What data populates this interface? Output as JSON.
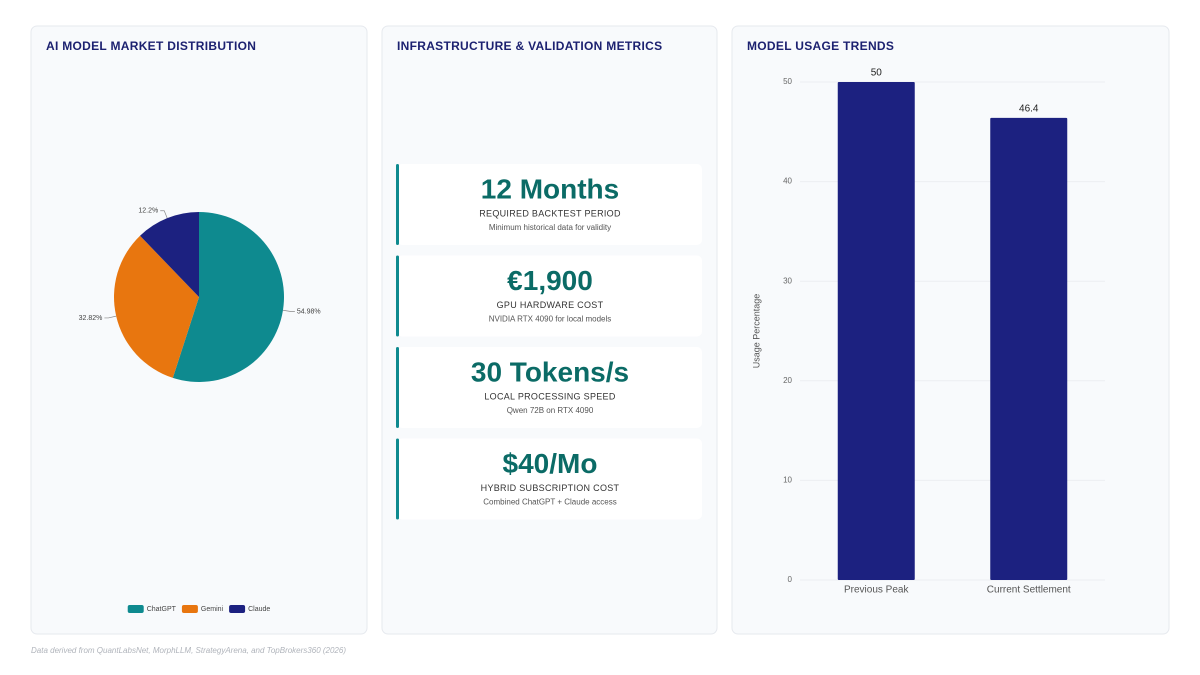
{
  "chart_data": [
    {
      "type": "pie",
      "title": "AI MODEL MARKET DISTRIBUTION",
      "categories": [
        "ChatGPT",
        "Gemini",
        "Claude"
      ],
      "values": [
        54.98,
        32.82,
        12.2
      ],
      "value_labels": [
        "54.98%",
        "32.82%",
        "12.2%"
      ],
      "colors": [
        "#0e8a8f",
        "#e8760f",
        "#1c2180"
      ]
    },
    {
      "type": "bar",
      "title": "MODEL USAGE TRENDS",
      "categories": [
        "Previous Peak",
        "Current Settlement"
      ],
      "values": [
        50,
        46.4
      ],
      "color": "#1c2180",
      "y_label": "Usage Percentage",
      "ylim": [
        0,
        50
      ],
      "yticks": [
        0,
        10,
        20,
        30,
        40,
        50
      ],
      "grid": true
    }
  ],
  "metrics": {
    "title": "INFRASTRUCTURE & VALIDATION METRICS",
    "cards": [
      {
        "value": "12 Months",
        "label": "REQUIRED BACKTEST PERIOD",
        "note": "Minimum historical data for validity"
      },
      {
        "value": "€1,900",
        "label": "GPU HARDWARE COST",
        "note": "NVIDIA RTX 4090 for local models"
      },
      {
        "value": "30 Tokens/s",
        "label": "LOCAL PROCESSING SPEED",
        "note": "Qwen 72B on RTX 4090"
      },
      {
        "value": "$40/Mo",
        "label": "HYBRID SUBSCRIPTION COST",
        "note": "Combined ChatGPT + Claude access"
      }
    ]
  },
  "footer": "Data derived from QuantLabsNet, MorphLLM, StrategyArena, and TopBrokers360 (2026)"
}
